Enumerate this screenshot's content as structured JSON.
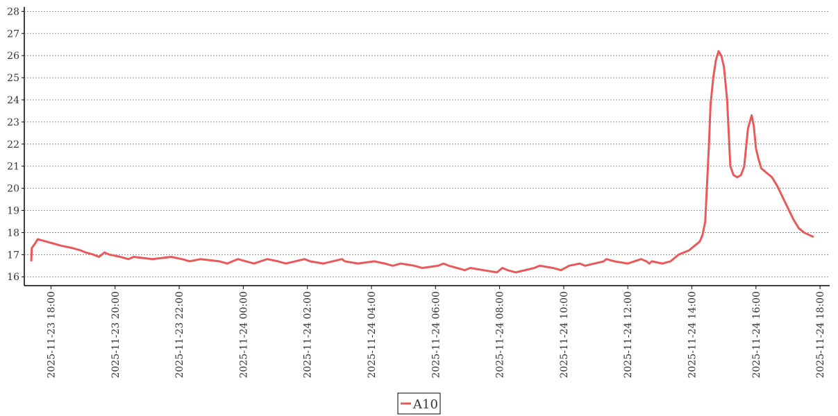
{
  "chart_data": {
    "type": "line",
    "x": [
      "2025-11-23 17:23",
      "2025-11-23 17:24",
      "2025-11-23 17:30",
      "2025-11-23 17:35",
      "2025-11-23 17:50",
      "2025-11-23 18:05",
      "2025-11-23 18:20",
      "2025-11-23 18:40",
      "2025-11-23 18:55",
      "2025-11-23 19:05",
      "2025-11-23 19:20",
      "2025-11-23 19:30",
      "2025-11-23 19:35",
      "2025-11-23 19:40",
      "2025-11-23 19:50",
      "2025-11-23 20:10",
      "2025-11-23 20:25",
      "2025-11-23 20:35",
      "2025-11-23 21:10",
      "2025-11-23 21:45",
      "2025-11-23 22:05",
      "2025-11-23 22:20",
      "2025-11-23 22:40",
      "2025-11-23 23:15",
      "2025-11-23 23:30",
      "2025-11-23 23:40",
      "2025-11-23 23:50",
      "2025-11-24 00:05",
      "2025-11-24 00:20",
      "2025-11-24 00:45",
      "2025-11-24 01:05",
      "2025-11-24 01:20",
      "2025-11-24 01:55",
      "2025-11-24 02:05",
      "2025-11-24 02:30",
      "2025-11-24 03:05",
      "2025-11-24 03:10",
      "2025-11-24 03:35",
      "2025-11-24 04:05",
      "2025-11-24 04:25",
      "2025-11-24 04:40",
      "2025-11-24 04:55",
      "2025-11-24 05:20",
      "2025-11-24 05:35",
      "2025-11-24 06:05",
      "2025-11-24 06:15",
      "2025-11-24 06:25",
      "2025-11-24 06:40",
      "2025-11-24 06:55",
      "2025-11-24 07:05",
      "2025-11-24 07:30",
      "2025-11-24 07:55",
      "2025-11-24 08:05",
      "2025-11-24 08:15",
      "2025-11-24 08:30",
      "2025-11-24 09:05",
      "2025-11-24 09:15",
      "2025-11-24 09:40",
      "2025-11-24 09:55",
      "2025-11-24 10:10",
      "2025-11-24 10:30",
      "2025-11-24 10:40",
      "2025-11-24 11:15",
      "2025-11-24 11:20",
      "2025-11-24 11:35",
      "2025-11-24 12:00",
      "2025-11-24 12:25",
      "2025-11-24 12:35",
      "2025-11-24 12:40",
      "2025-11-24 12:45",
      "2025-11-24 13:05",
      "2025-11-24 13:20",
      "2025-11-24 13:30",
      "2025-11-24 13:35",
      "2025-11-24 13:45",
      "2025-11-24 13:55",
      "2025-11-24 14:05",
      "2025-11-24 14:15",
      "2025-11-24 14:20",
      "2025-11-24 14:25",
      "2025-11-24 14:28",
      "2025-11-24 14:32",
      "2025-11-24 14:35",
      "2025-11-24 14:40",
      "2025-11-24 14:45",
      "2025-11-24 14:50",
      "2025-11-24 14:55",
      "2025-11-24 15:00",
      "2025-11-24 15:06",
      "2025-11-24 15:12",
      "2025-11-24 15:18",
      "2025-11-24 15:25",
      "2025-11-24 15:32",
      "2025-11-24 15:38",
      "2025-11-24 15:45",
      "2025-11-24 15:52",
      "2025-11-24 15:56",
      "2025-11-24 16:00",
      "2025-11-24 16:05",
      "2025-11-24 16:10",
      "2025-11-24 16:20",
      "2025-11-24 16:30",
      "2025-11-24 16:40",
      "2025-11-24 16:50",
      "2025-11-24 17:00",
      "2025-11-24 17:10",
      "2025-11-24 17:20",
      "2025-11-24 17:30",
      "2025-11-24 17:48"
    ],
    "series": [
      {
        "name": "A10",
        "color": "#e8595a",
        "values": [
          16.7,
          17.3,
          17.5,
          17.7,
          17.6,
          17.5,
          17.4,
          17.3,
          17.2,
          17.1,
          17.0,
          16.9,
          17.0,
          17.1,
          17.0,
          16.9,
          16.8,
          16.9,
          16.8,
          16.9,
          16.8,
          16.7,
          16.8,
          16.7,
          16.6,
          16.7,
          16.8,
          16.7,
          16.6,
          16.8,
          16.7,
          16.6,
          16.8,
          16.7,
          16.6,
          16.8,
          16.7,
          16.6,
          16.7,
          16.6,
          16.5,
          16.6,
          16.5,
          16.4,
          16.5,
          16.6,
          16.5,
          16.4,
          16.3,
          16.4,
          16.3,
          16.2,
          16.4,
          16.3,
          16.2,
          16.4,
          16.5,
          16.4,
          16.3,
          16.5,
          16.6,
          16.5,
          16.7,
          16.8,
          16.7,
          16.6,
          16.8,
          16.7,
          16.6,
          16.7,
          16.6,
          16.7,
          16.9,
          17.0,
          17.1,
          17.2,
          17.4,
          17.6,
          17.9,
          18.5,
          20.0,
          22.0,
          23.8,
          25.0,
          25.8,
          26.2,
          26.0,
          25.5,
          24.0,
          21.0,
          20.6,
          20.5,
          20.6,
          21.0,
          22.7,
          23.3,
          22.8,
          21.8,
          21.3,
          20.9,
          20.7,
          20.5,
          20.1,
          19.6,
          19.1,
          18.6,
          18.2,
          18.0,
          17.8
        ]
      }
    ],
    "xlim": [
      "2025-11-23 17:10",
      "2025-11-24 18:18"
    ],
    "xticks": [
      "2025-11-23 18:00",
      "2025-11-23 20:00",
      "2025-11-23 22:00",
      "2025-11-24 00:00",
      "2025-11-24 02:00",
      "2025-11-24 04:00",
      "2025-11-24 06:00",
      "2025-11-24 08:00",
      "2025-11-24 10:00",
      "2025-11-24 12:00",
      "2025-11-24 14:00",
      "2025-11-24 16:00",
      "2025-11-24 18:00"
    ],
    "ylim": [
      15.6,
      28.2
    ],
    "yticks": [
      16,
      17,
      18,
      19,
      20,
      21,
      22,
      23,
      24,
      25,
      26,
      27,
      28
    ],
    "grid": true
  }
}
